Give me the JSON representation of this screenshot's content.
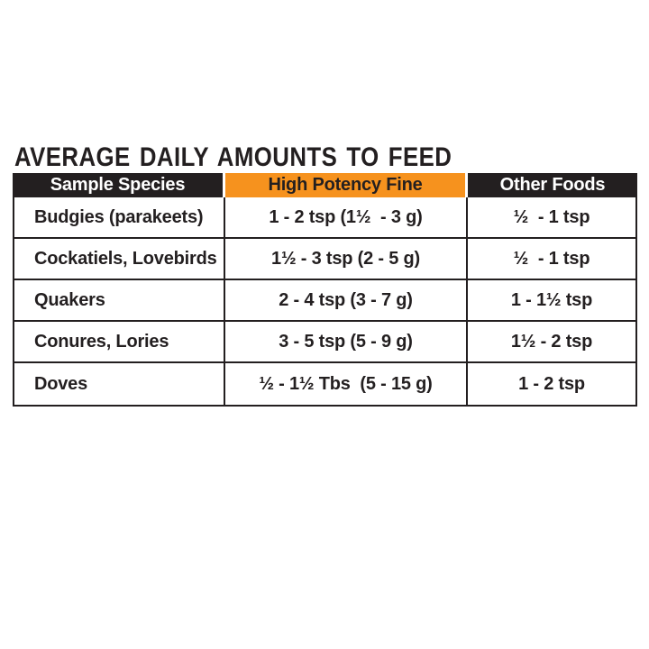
{
  "title": "AVERAGE DAILY AMOUNTS TO FEED",
  "colors": {
    "header_dark": "#231f20",
    "header_orange": "#f6921e",
    "header_dark_text": "#ffffff",
    "body_text": "#231f20",
    "grid_line": "#231f20",
    "background": "#ffffff"
  },
  "table": {
    "header": [
      "Sample Species",
      "High Potency Fine",
      "Other Foods"
    ],
    "rows": [
      {
        "species": "Budgies (parakeets)",
        "high_potency": "1 - 2 tsp (1½  - 3 g)",
        "other": "½  - 1 tsp"
      },
      {
        "species": "Cockatiels, Lovebirds",
        "high_potency": "1½ - 3 tsp (2 - 5 g)",
        "other": "½  - 1 tsp"
      },
      {
        "species": "Quakers",
        "high_potency": "2 - 4 tsp (3 - 7 g)",
        "other": "1 - 1½ tsp"
      },
      {
        "species": "Conures, Lories",
        "high_potency": "3 - 5 tsp (5 - 9 g)",
        "other": "1½ - 2 tsp"
      },
      {
        "species": "Doves",
        "high_potency": "½ - 1½ Tbs  (5 - 15 g)",
        "other": "1 - 2 tsp"
      }
    ]
  }
}
